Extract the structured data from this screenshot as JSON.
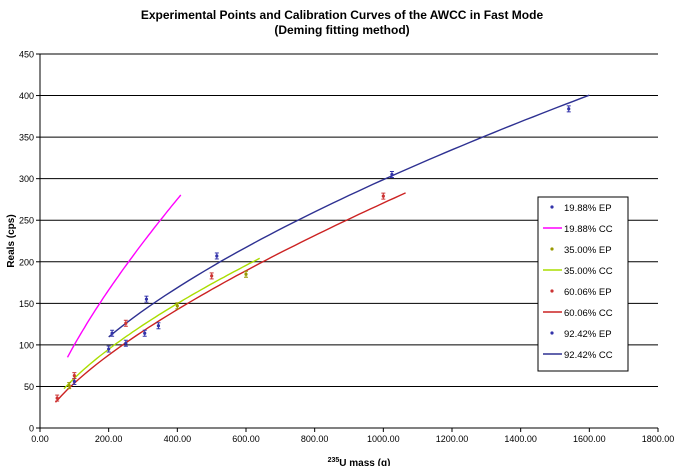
{
  "chart_data": {
    "type": "line",
    "title": "Experimental Points and Calibration Curves of the AWCC in Fast Mode",
    "subtitle": "(Deming fitting method)",
    "ylabel": "Reals (cps)",
    "xlabel_sup": "235",
    "xlabel_rest": "U mass (g)",
    "xlim": [
      0,
      1800
    ],
    "ylim": [
      0,
      450
    ],
    "xticks": [
      "0.00",
      "200.00",
      "400.00",
      "600.00",
      "800.00",
      "1000.00",
      "1200.00",
      "1400.00",
      "1600.00",
      "1800.00"
    ],
    "yticks": [
      "0",
      "50",
      "100",
      "150",
      "200",
      "250",
      "300",
      "350",
      "400",
      "450"
    ],
    "grid": "horizontal",
    "legend_position": "right",
    "series": [
      {
        "name": "19.88% EP",
        "kind": "points",
        "color": "#3333aa",
        "x": [
          100,
          200,
          250,
          305,
          345
        ],
        "y": [
          56,
          95,
          102,
          114,
          123
        ]
      },
      {
        "name": "19.88% CC",
        "kind": "curve",
        "color": "#ff00ff",
        "a": 3.47,
        "b": 0.73,
        "x_range": [
          80,
          410
        ]
      },
      {
        "name": "35.00% EP",
        "kind": "points",
        "color": "#999900",
        "x": [
          85,
          400,
          600
        ],
        "y": [
          51,
          147,
          185
        ]
      },
      {
        "name": "35.00% CC",
        "kind": "curve",
        "color": "#aadd00",
        "a": 2.87,
        "b": 0.66,
        "x_range": [
          70,
          640
        ]
      },
      {
        "name": "60.06% EP",
        "kind": "points",
        "color": "#cc3333",
        "x": [
          50,
          100,
          250,
          500,
          1000
        ],
        "y": [
          36,
          63,
          126,
          183,
          279
        ]
      },
      {
        "name": "60.06% CC",
        "kind": "curve",
        "color": "#cc2222",
        "a": 2.15,
        "b": 0.7,
        "x_range": [
          45,
          1065
        ]
      },
      {
        "name": "92.42% EP",
        "kind": "points",
        "color": "#3333aa",
        "x": [
          210,
          310,
          515,
          1025,
          1540
        ],
        "y": [
          114,
          155,
          207,
          305,
          384
        ]
      },
      {
        "name": "92.42% CC",
        "kind": "curve",
        "color": "#2e3192",
        "a": 4.04,
        "b": 0.623,
        "x_range": [
          200,
          1600
        ]
      }
    ]
  }
}
